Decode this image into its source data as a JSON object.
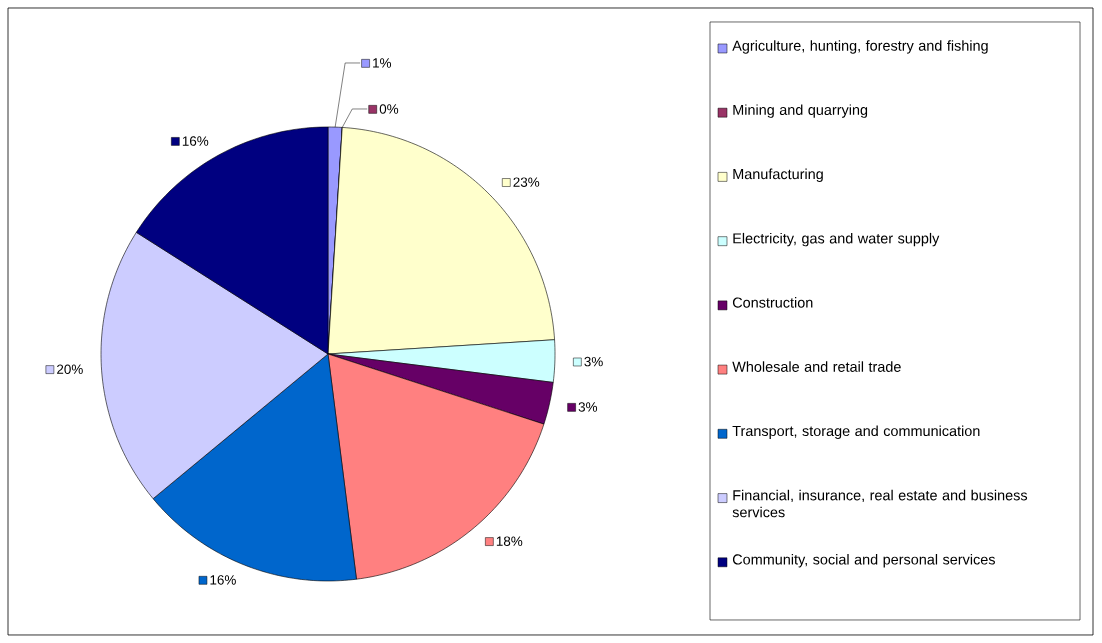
{
  "chart_data": {
    "type": "pie",
    "categories": [
      "Agriculture, hunting, forestry and fishing",
      "Mining and quarrying",
      "Manufacturing",
      "Electricity, gas and water supply",
      "Construction",
      "Wholesale and retail trade",
      "Transport, storage and communication",
      "Financial, insurance, real estate and business services",
      "Community, social and personal services"
    ],
    "values": [
      1,
      0,
      23,
      3,
      3,
      18,
      16,
      20,
      16
    ],
    "value_labels": [
      "1%",
      "0%",
      "23%",
      "3%",
      "3%",
      "18%",
      "16%",
      "20%",
      "16%"
    ],
    "colors": [
      "#9999ff",
      "#993366",
      "#ffffcc",
      "#ccffff",
      "#660066",
      "#ff8080",
      "#0066cc",
      "#ccccff",
      "#000080"
    ],
    "legend": "right"
  }
}
